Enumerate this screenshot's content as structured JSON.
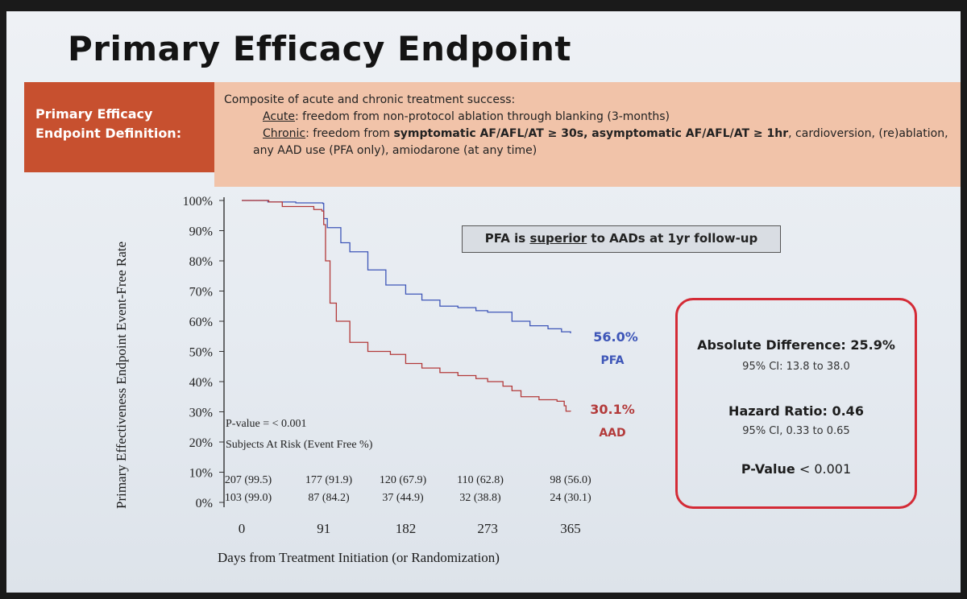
{
  "slide": {
    "title": "Primary Efficacy Endpoint",
    "definition": {
      "label_line1": "Primary Efficacy",
      "label_line2": "Endpoint Definition:",
      "line1": "Composite of acute and chronic treatment success:",
      "acute_term": "Acute",
      "acute_text": ": freedom from non-protocol ablation through blanking (3-months)",
      "chronic_term": "Chronic",
      "chronic_text_a": ": freedom from ",
      "chronic_bold": "symptomatic AF/AFL/AT ≥ 30s, asymptomatic AF/AFL/AT ≥ 1hr",
      "chronic_text_b": ", cardioversion, (re)ablation,",
      "line_last": "any AAD use (PFA only), amiodarone (at any time)"
    },
    "banner": {
      "text_a": "PFA is ",
      "text_underlined": "superior",
      "text_b": " to AADs at 1yr follow-up"
    },
    "stats": {
      "abs_diff": "Absolute Difference: 25.9%",
      "abs_ci": "95% CI: 13.8 to 38.0",
      "hr": "Hazard Ratio: 0.46",
      "hr_ci": "95% CI, 0.33 to 0.65",
      "p_label": "P-Value",
      "p_value": " < 0.001"
    }
  },
  "colors": {
    "pfa": "#3e56b8",
    "aad": "#b33a3a",
    "axis": "#333333",
    "label_bg": "#c7502f",
    "def_bg": "#f1c3a9",
    "stats_border": "#d42b36"
  },
  "chart_data": {
    "type": "line",
    "ylabel": "Primary Effectiveness Endpoint Event-Free Rate",
    "xlabel": "Days from Treatment Initiation (or Randomization)",
    "xlim": [
      0,
      365
    ],
    "ylim": [
      0,
      100
    ],
    "x_ticks": [
      0,
      91,
      182,
      273,
      365
    ],
    "y_ticks": [
      "0%",
      "10%",
      "20%",
      "30%",
      "40%",
      "50%",
      "60%",
      "70%",
      "80%",
      "90%",
      "100%"
    ],
    "series": [
      {
        "name": "PFA",
        "end_label": "56.0%",
        "points": [
          [
            0,
            100
          ],
          [
            28,
            100
          ],
          [
            29,
            99.5
          ],
          [
            60,
            99.2
          ],
          [
            90,
            99
          ],
          [
            91,
            94
          ],
          [
            95,
            91
          ],
          [
            110,
            86
          ],
          [
            120,
            83
          ],
          [
            140,
            77
          ],
          [
            160,
            72
          ],
          [
            182,
            69
          ],
          [
            200,
            67
          ],
          [
            220,
            65
          ],
          [
            240,
            64.5
          ],
          [
            260,
            63.5
          ],
          [
            273,
            63
          ],
          [
            300,
            60
          ],
          [
            320,
            58.5
          ],
          [
            340,
            57.5
          ],
          [
            355,
            56.5
          ],
          [
            365,
            56
          ]
        ]
      },
      {
        "name": "AAD",
        "end_label": "30.1%",
        "points": [
          [
            0,
            100
          ],
          [
            30,
            99.5
          ],
          [
            45,
            98
          ],
          [
            80,
            97
          ],
          [
            89,
            96.5
          ],
          [
            91,
            92
          ],
          [
            93,
            80
          ],
          [
            98,
            66
          ],
          [
            105,
            60
          ],
          [
            120,
            53
          ],
          [
            140,
            50
          ],
          [
            165,
            49
          ],
          [
            182,
            46
          ],
          [
            200,
            44.5
          ],
          [
            220,
            43
          ],
          [
            240,
            42
          ],
          [
            260,
            41
          ],
          [
            273,
            40
          ],
          [
            290,
            38.5
          ],
          [
            300,
            37
          ],
          [
            310,
            35
          ],
          [
            330,
            34
          ],
          [
            350,
            33.5
          ],
          [
            358,
            32
          ],
          [
            360,
            30.2
          ],
          [
            365,
            30.1
          ]
        ]
      }
    ],
    "annotations": {
      "p_value": "P-value = < 0.001",
      "at_risk_title": "Subjects At Risk (Event Free %)",
      "at_risk_pfa": [
        "207 (99.5)",
        "177 (91.9)",
        "120 (67.9)",
        "110 (62.8)",
        "98 (56.0)"
      ],
      "at_risk_aad": [
        "103 (99.0)",
        "87 (84.2)",
        "37 (44.9)",
        "32 (38.8)",
        "24 (30.1)"
      ]
    }
  }
}
